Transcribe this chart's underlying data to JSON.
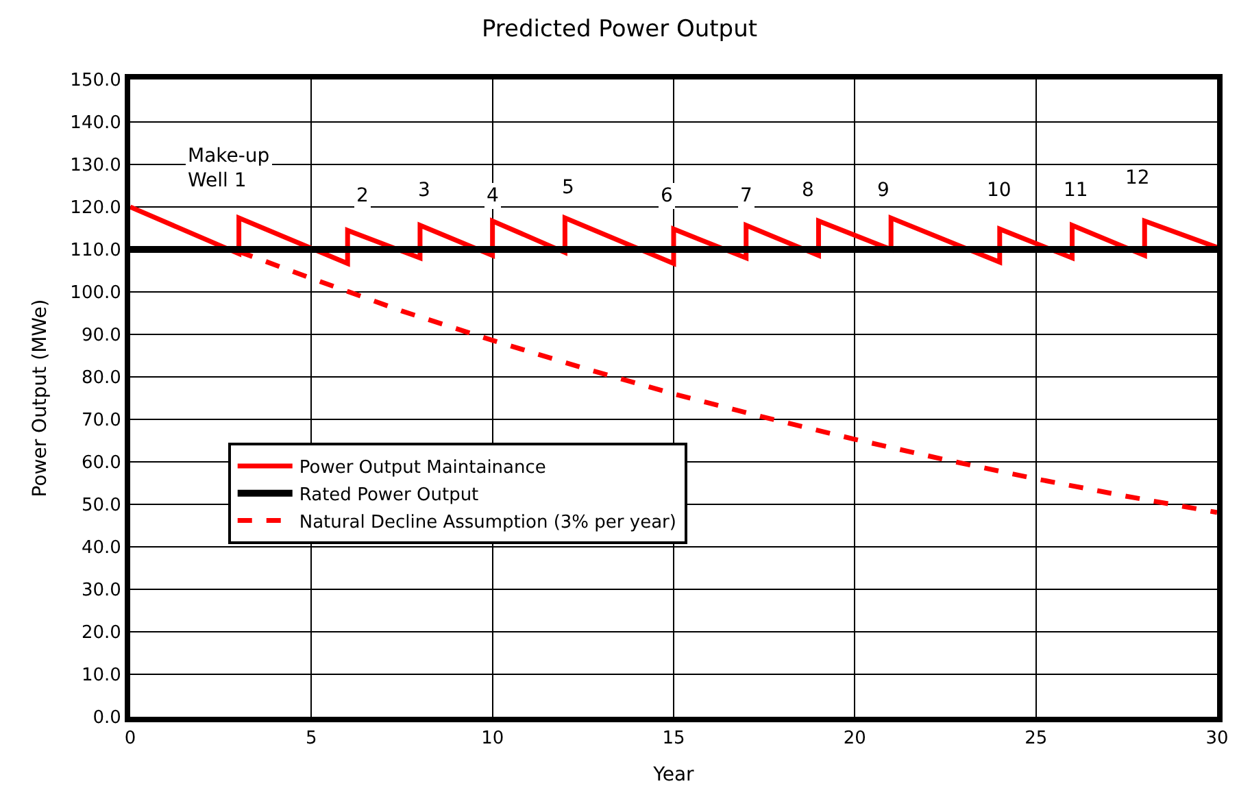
{
  "chart_data": {
    "type": "line",
    "title": "Predicted Power Output",
    "xlabel": "Year",
    "ylabel": "Power Output (MWe)",
    "series": [
      {
        "name": "Power Output Maintainance",
        "color": "#ff0000",
        "line_style": "solid",
        "x": [
          0,
          3,
          3,
          6,
          6,
          8,
          8,
          10,
          10,
          12,
          12,
          15,
          15,
          17,
          17,
          19,
          19,
          21,
          21,
          24,
          24,
          26,
          26,
          28,
          28,
          30
        ],
        "values": [
          120,
          109,
          117.4,
          106.7,
          114.5,
          108,
          115.7,
          108.6,
          116.7,
          109.3,
          117.4,
          106.7,
          114.8,
          108,
          115.7,
          108.6,
          116.7,
          110,
          117.4,
          107,
          114.8,
          108,
          115.7,
          108.6,
          116.7,
          110.5
        ]
      },
      {
        "name": "Rated Power Output",
        "color": "#000000",
        "line_style": "solid",
        "x": [
          0,
          5,
          10,
          15,
          20,
          25,
          30
        ],
        "values": [
          110,
          110,
          110,
          110,
          110,
          110,
          110
        ]
      },
      {
        "name": "Natural Decline Assumption (3% per year)",
        "color": "#ff0000",
        "line_style": "dashed",
        "x": [
          3,
          5,
          7.5,
          10,
          12.5,
          15,
          17.5,
          20,
          22.5,
          25,
          27.5,
          30
        ],
        "values": [
          109.5,
          103.2,
          95.5,
          88.6,
          82.1,
          76.0,
          70.5,
          65.3,
          60.5,
          56.0,
          51.9,
          48.1
        ]
      }
    ],
    "xlim": [
      0,
      30
    ],
    "xticks": [
      0,
      5,
      10,
      15,
      20,
      25,
      30
    ],
    "ylim": [
      0,
      150
    ],
    "yticks": [
      {
        "value": 0,
        "label": "0.0"
      },
      {
        "value": 10,
        "label": "10.0"
      },
      {
        "value": 20,
        "label": "20.0"
      },
      {
        "value": 30,
        "label": "30.0"
      },
      {
        "value": 40,
        "label": "40.0"
      },
      {
        "value": 50,
        "label": "50.0"
      },
      {
        "value": 60,
        "label": "60.0"
      },
      {
        "value": 70,
        "label": "70.0"
      },
      {
        "value": 80,
        "label": "80.0"
      },
      {
        "value": 90,
        "label": "90.0"
      },
      {
        "value": 100,
        "label": "100.0"
      },
      {
        "value": 110,
        "label": "110.0"
      },
      {
        "value": 120,
        "label": "120.0"
      },
      {
        "value": 130,
        "label": "130.0"
      },
      {
        "value": 140,
        "label": "140.0"
      },
      {
        "value": 150,
        "label": "150.0"
      }
    ],
    "grid": true,
    "legend": "left",
    "marker": "none",
    "annotations": [
      "Make-up\nWell 1",
      {
        "text": "2",
        "x": 6.4,
        "y": 122.5
      },
      {
        "text": "3",
        "x": 8.1,
        "y": 124
      },
      {
        "text": "4",
        "x": 10.0,
        "y": 122.5
      },
      {
        "text": "5",
        "x": 12.1,
        "y": 124.5
      },
      {
        "text": "6",
        "x": 14.8,
        "y": 122.5
      },
      {
        "text": "7",
        "x": 17.0,
        "y": 122.5
      },
      {
        "text": "8",
        "x": 18.7,
        "y": 124
      },
      {
        "text": "9",
        "x": 20.8,
        "y": 124
      },
      {
        "text": "10",
        "x": 24.0,
        "y": 124
      },
      {
        "text": "11",
        "x": 26.1,
        "y": 124
      },
      {
        "text": "12",
        "x": 27.8,
        "y": 126.7
      }
    ]
  }
}
